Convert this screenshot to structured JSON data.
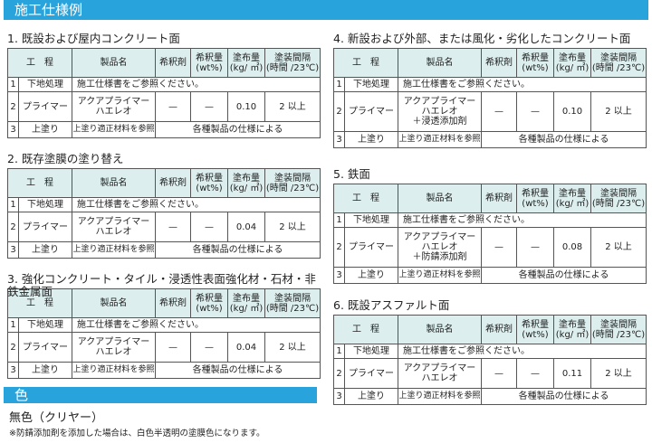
{
  "title": "施工仕様例",
  "headers": [
    "工　程",
    "製品名",
    "希釈剤",
    "希釈量\n(wt%)",
    "塗布量\n(kg/ ㎡)",
    "塗装間隔\n(時間 /23℃)"
  ],
  "sections": [
    {
      "title": "1. 既設および屋内コンクリート面",
      "product": "アクアプライマー\nハエレオ",
      "amount": "0.10"
    },
    {
      "title": "2. 既存塗膜の塗り替え",
      "product": "アクアプライマー\nハエレオ",
      "amount": "0.04"
    },
    {
      "title": "3. 強化コンクリート・タイル・浸透性表面強化材・石材・非鉄金属面",
      "product": "アクアプライマー\nハエレオ",
      "amount": "0.04"
    },
    {
      "title": "4. 新設および外部、または風化・劣化したコンクリート面",
      "product": "アクアプライマー\nハエレオ\n＋浸透添加剤",
      "amount": "0.10"
    },
    {
      "title": "5. 鉄面",
      "product": "アクアプライマー\nハエレオ\n＋防錆添加剤",
      "amount": "0.08"
    },
    {
      "title": "6. 既設アスファルト面",
      "product": "アクアプライマー\nハエレオ",
      "amount": "0.11"
    }
  ],
  "rows": {
    "r1": {
      "no": "1",
      "step": "下地処理",
      "text": "施工仕様書をご参照ください。"
    },
    "r2": {
      "no": "2",
      "step": "プライマー",
      "thinner": "—",
      "ratio": "—",
      "interval": "2 以上"
    },
    "r3": {
      "no": "3",
      "step": "上塗り",
      "product": "上塗り適正材料を参照",
      "text": "各種製品の仕様による"
    }
  },
  "color": {
    "title": "色",
    "value": "無色（クリヤー）",
    "note": "※防錆添加剤を添加した場合は、白色半透明の塗膜色になります。"
  },
  "accent": "#29a3dc"
}
